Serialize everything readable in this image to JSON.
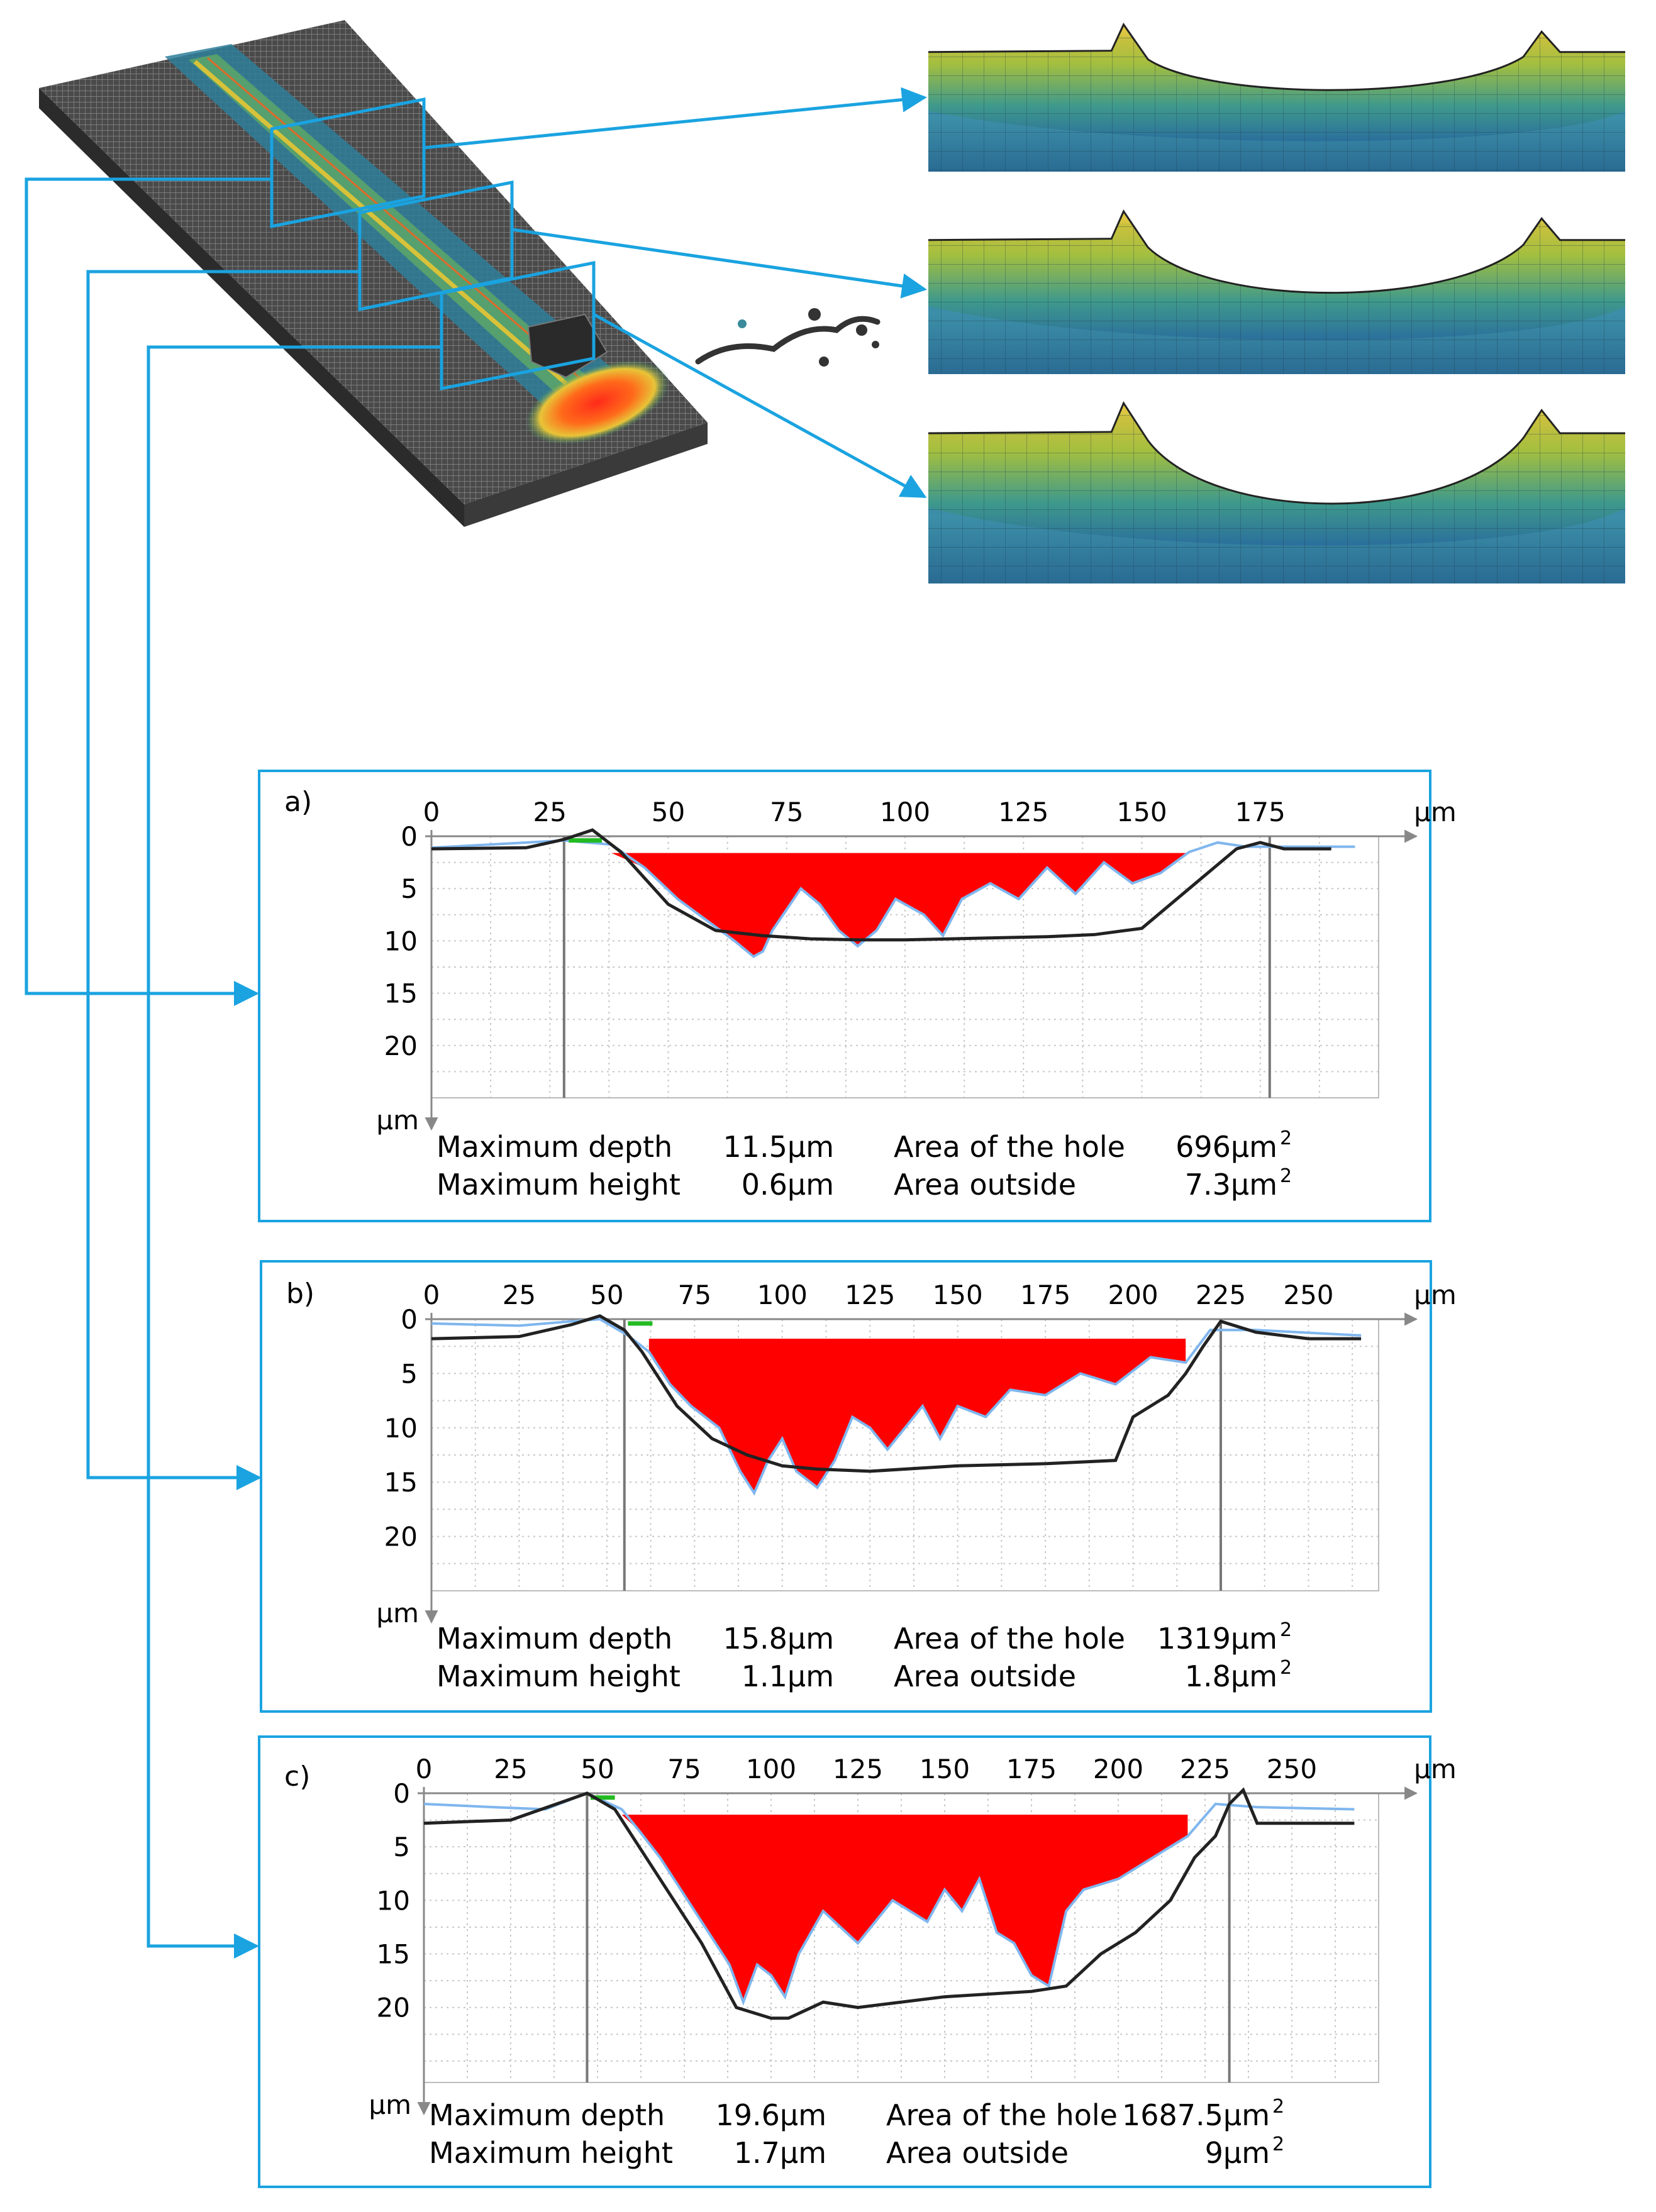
{
  "colors": {
    "accent": "#1aa3e0",
    "hole_fill": "#ff0000",
    "profile_line": "#222222",
    "measured_line": "#7fb6ee",
    "highlight": "#22bb22",
    "grid": "#c8c8c8"
  },
  "panels": [
    {
      "label": "a)",
      "x_ticks": [
        "0",
        "25",
        "50",
        "75",
        "100",
        "125",
        "150",
        "175"
      ],
      "y_ticks": [
        "0",
        "5",
        "10",
        "15",
        "20"
      ],
      "x_unit": "μm",
      "y_unit": "μm",
      "stats": {
        "max_depth_label": "Maximum depth",
        "max_depth_value": "11.5μm",
        "max_height_label": "Maximum height",
        "max_height_value": "0.6μm",
        "area_hole_label": "Area of the hole",
        "area_hole_value": "696μm",
        "area_hole_sup": "2",
        "area_outside_label": "Area outside",
        "area_outside_value": "7.3μm",
        "area_outside_sup": "2"
      }
    },
    {
      "label": "b)",
      "x_ticks": [
        "0",
        "25",
        "50",
        "75",
        "100",
        "125",
        "150",
        "175",
        "200",
        "225",
        "250"
      ],
      "y_ticks": [
        "0",
        "5",
        "10",
        "15",
        "20"
      ],
      "x_unit": "μm",
      "y_unit": "μm",
      "stats": {
        "max_depth_label": "Maximum depth",
        "max_depth_value": "15.8μm",
        "max_height_label": "Maximum height",
        "max_height_value": "1.1μm",
        "area_hole_label": "Area of the hole",
        "area_hole_value": "1319μm",
        "area_hole_sup": "2",
        "area_outside_label": "Area outside",
        "area_outside_value": "1.8μm",
        "area_outside_sup": "2"
      }
    },
    {
      "label": "c)",
      "x_ticks": [
        "0",
        "25",
        "50",
        "75",
        "100",
        "125",
        "150",
        "175",
        "200",
        "225",
        "250"
      ],
      "y_ticks": [
        "0",
        "5",
        "10",
        "15",
        "20"
      ],
      "x_unit": "μm",
      "y_unit": "μm",
      "stats": {
        "max_depth_label": "Maximum depth",
        "max_depth_value": "19.6μm",
        "max_height_label": "Maximum height",
        "max_height_value": "1.7μm",
        "area_hole_label": "Area of the hole",
        "area_hole_value": "1687.5μm",
        "area_hole_sup": "2",
        "area_outside_label": "Area outside",
        "area_outside_value": "9μm",
        "area_outside_sup": "2"
      }
    }
  ],
  "chart_data": [
    {
      "type": "area",
      "title": "a)",
      "x_unit": "μm",
      "y_unit": "μm",
      "xlim": [
        0,
        200
      ],
      "ylim": [
        0,
        25
      ],
      "y_inverted": true,
      "grid": true,
      "boundaries": [
        28,
        177
      ],
      "profile": {
        "x": [
          0,
          20,
          28,
          34,
          40,
          50,
          60,
          70,
          80,
          90,
          100,
          110,
          120,
          130,
          140,
          150,
          160,
          170,
          175,
          180,
          190
        ],
        "y": [
          1.2,
          1.1,
          0.3,
          -0.6,
          1.5,
          6.5,
          9,
          9.5,
          9.8,
          9.9,
          9.9,
          9.8,
          9.7,
          9.6,
          9.4,
          8.8,
          5,
          1.2,
          0.6,
          1.2,
          1.2
        ]
      },
      "measured": {
        "x": [
          0,
          28,
          38,
          45,
          52,
          58,
          64,
          68,
          70,
          72,
          78,
          82,
          86,
          90,
          94,
          98,
          104,
          108,
          112,
          118,
          124,
          130,
          136,
          142,
          148,
          154,
          160,
          166,
          172,
          180,
          195
        ],
        "y": [
          1.1,
          0.4,
          0.8,
          3,
          6,
          8,
          10,
          11.5,
          11,
          9,
          5,
          6.5,
          9,
          10.5,
          9,
          6,
          7.5,
          9.5,
          6,
          4.5,
          6,
          3,
          5.5,
          2.5,
          4.5,
          3.5,
          1.5,
          0.6,
          1,
          1,
          1
        ]
      },
      "hole_fill_level": 0.6
    },
    {
      "type": "area",
      "title": "b)",
      "x_unit": "μm",
      "y_unit": "μm",
      "xlim": [
        0,
        270
      ],
      "ylim": [
        0,
        25
      ],
      "y_inverted": true,
      "grid": true,
      "boundaries": [
        55,
        225
      ],
      "profile": {
        "x": [
          0,
          25,
          40,
          48,
          55,
          60,
          70,
          80,
          90,
          100,
          110,
          125,
          150,
          175,
          195,
          200,
          210,
          215,
          220,
          225,
          235,
          250,
          265
        ],
        "y": [
          1.8,
          1.6,
          0.5,
          -0.3,
          1,
          3,
          8,
          11,
          12.5,
          13.5,
          13.8,
          14,
          13.5,
          13.3,
          13,
          9,
          7,
          5,
          2.5,
          0.2,
          1.2,
          1.8,
          1.8
        ]
      },
      "measured": {
        "x": [
          0,
          25,
          40,
          48,
          56,
          62,
          68,
          74,
          82,
          88,
          92,
          96,
          100,
          104,
          110,
          115,
          120,
          125,
          130,
          140,
          145,
          150,
          158,
          165,
          175,
          185,
          195,
          205,
          215,
          222,
          235,
          265
        ],
        "y": [
          0.4,
          0.6,
          0.2,
          0,
          1.5,
          3,
          6,
          8,
          10,
          14,
          16,
          13,
          11,
          14,
          15.5,
          13,
          9,
          10,
          12,
          8,
          11,
          8,
          9,
          6.5,
          7,
          5,
          6,
          3.5,
          4,
          1,
          1,
          1.5
        ]
      },
      "hole_fill_level": 0.8
    },
    {
      "type": "area",
      "title": "c)",
      "x_unit": "μm",
      "y_unit": "μm",
      "xlim": [
        0,
        275
      ],
      "ylim": [
        0,
        27
      ],
      "y_inverted": true,
      "grid": true,
      "boundaries": [
        47,
        232
      ],
      "profile": {
        "x": [
          0,
          25,
          40,
          47,
          55,
          60,
          70,
          80,
          90,
          100,
          105,
          115,
          125,
          150,
          175,
          185,
          195,
          205,
          215,
          222,
          228,
          232,
          236,
          240,
          250,
          268
        ],
        "y": [
          2.8,
          2.5,
          0.8,
          0,
          1.5,
          4,
          9,
          14,
          20,
          21,
          21,
          19.5,
          20,
          19,
          18.5,
          18,
          15,
          13,
          10,
          6,
          4,
          1,
          -0.3,
          2.8,
          2.8,
          2.8
        ]
      },
      "measured": {
        "x": [
          0,
          20,
          35,
          47,
          57,
          62,
          68,
          72,
          80,
          88,
          92,
          96,
          100,
          104,
          108,
          115,
          125,
          135,
          145,
          150,
          155,
          160,
          165,
          170,
          175,
          180,
          185,
          190,
          200,
          210,
          220,
          228,
          240,
          268
        ],
        "y": [
          1,
          1.3,
          1.5,
          0,
          1.5,
          3.5,
          6,
          8,
          12,
          16,
          19.5,
          16,
          17,
          19,
          15,
          11,
          14,
          10,
          12,
          9,
          11,
          8,
          13,
          14,
          17,
          18,
          11,
          9,
          8,
          6,
          4,
          1,
          1.3,
          1.5
        ]
      },
      "hole_fill_level": 1.0
    }
  ]
}
